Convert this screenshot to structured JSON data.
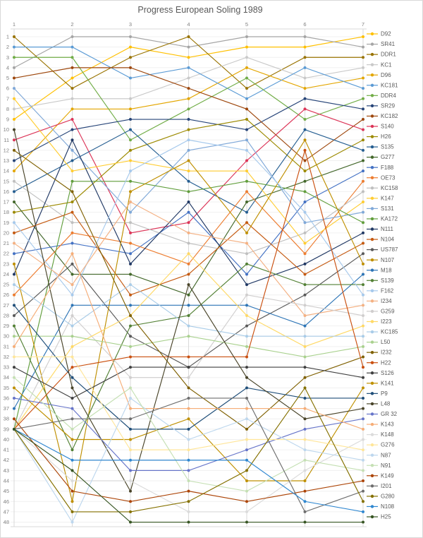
{
  "title": "Progress European Soling 1989",
  "chart_data": {
    "type": "line",
    "title": "Progress European Soling 1989",
    "xlabel": "",
    "ylabel": "",
    "x": [
      1,
      2,
      3,
      4,
      5,
      6,
      7
    ],
    "x_axis_position": "top",
    "y_axis": {
      "min": 1,
      "max": 48,
      "inverted": true,
      "meaning": "overall position after each race"
    },
    "grid": true,
    "legend_position": "right",
    "axis_color": "#808080",
    "grid_color_h": "#f0f0f0",
    "grid_color_v": "#d9d9d9",
    "series": [
      {
        "name": "D92",
        "color": "#FFC000",
        "positions": [
          9,
          5,
          2,
          3,
          2,
          2,
          1
        ]
      },
      {
        "name": "SR41",
        "color": "#A5A5A5",
        "positions": [
          4,
          1,
          1,
          2,
          1,
          1,
          2
        ]
      },
      {
        "name": "DDR1",
        "color": "#997300",
        "positions": [
          1,
          6,
          3,
          1,
          6,
          3,
          3
        ]
      },
      {
        "name": "KC1",
        "color": "#C9C9C9",
        "positions": [
          8,
          7,
          7,
          5,
          3,
          5,
          4
        ]
      },
      {
        "name": "D96",
        "color": "#E3A600",
        "positions": [
          14,
          8,
          8,
          7,
          4,
          6,
          5
        ]
      },
      {
        "name": "KC181",
        "color": "#5B9BD5",
        "positions": [
          2,
          2,
          5,
          4,
          7,
          4,
          6
        ]
      },
      {
        "name": "DDR4",
        "color": "#71AD47",
        "positions": [
          3,
          3,
          11,
          8,
          5,
          9,
          7
        ]
      },
      {
        "name": "SR29",
        "color": "#264478",
        "positions": [
          13,
          10,
          9,
          9,
          10,
          7,
          8
        ]
      },
      {
        "name": "KC182",
        "color": "#9E480E",
        "positions": [
          5,
          4,
          4,
          6,
          8,
          13,
          9
        ]
      },
      {
        "name": "S140",
        "color": "#DC3558",
        "positions": [
          11,
          9,
          20,
          19,
          13,
          8,
          10
        ]
      },
      {
        "name": "H26",
        "color": "#9C8A00",
        "positions": [
          18,
          17,
          12,
          10,
          9,
          14,
          11
        ]
      },
      {
        "name": "S135",
        "color": "#255E91",
        "positions": [
          16,
          13,
          10,
          15,
          18,
          10,
          12
        ]
      },
      {
        "name": "G277",
        "color": "#43682B",
        "positions": [
          17,
          24,
          24,
          26,
          17,
          15,
          13
        ]
      },
      {
        "name": "F188",
        "color": "#4472C4",
        "positions": [
          22,
          21,
          22,
          18,
          24,
          17,
          14
        ]
      },
      {
        "name": "OE73",
        "color": "#ED7D31",
        "positions": [
          26,
          20,
          21,
          23,
          16,
          22,
          15
        ]
      },
      {
        "name": "KC158",
        "color": "#BFBFBF",
        "positions": [
          15,
          19,
          19,
          21,
          22,
          20,
          16
        ]
      },
      {
        "name": "K147",
        "color": "#FFCD33",
        "positions": [
          7,
          14,
          13,
          14,
          14,
          21,
          17
        ]
      },
      {
        "name": "S131",
        "color": "#7FA8D8",
        "positions": [
          6,
          12,
          18,
          12,
          11,
          19,
          18
        ]
      },
      {
        "name": "KA172",
        "color": "#619E3C",
        "positions": [
          39,
          15,
          15,
          16,
          15,
          16,
          19
        ]
      },
      {
        "name": "N111",
        "color": "#203864",
        "positions": [
          24,
          11,
          23,
          17,
          25,
          23,
          20
        ]
      },
      {
        "name": "N104",
        "color": "#C55A11",
        "positions": [
          20,
          18,
          26,
          24,
          19,
          24,
          21
        ]
      },
      {
        "name": "US787",
        "color": "#595959",
        "positions": [
          28,
          23,
          30,
          33,
          29,
          26,
          22
        ]
      },
      {
        "name": "N107",
        "color": "#BF8F00",
        "positions": [
          23,
          46,
          16,
          13,
          20,
          11,
          23
        ]
      },
      {
        "name": "M18",
        "color": "#2E75B6",
        "positions": [
          37,
          27,
          27,
          27,
          27,
          29,
          24
        ]
      },
      {
        "name": "S139",
        "color": "#538135",
        "positions": [
          29,
          41,
          29,
          28,
          23,
          25,
          25
        ]
      },
      {
        "name": "F162",
        "color": "#A6C9EC",
        "positions": [
          19,
          26,
          14,
          11,
          12,
          18,
          26
        ]
      },
      {
        "name": "I234",
        "color": "#F4B183",
        "positions": [
          21,
          25,
          17,
          20,
          21,
          28,
          27
        ]
      },
      {
        "name": "G259",
        "color": "#D0CECE",
        "positions": [
          39,
          28,
          34,
          34,
          26,
          27,
          28
        ]
      },
      {
        "name": "I223",
        "color": "#FFD966",
        "positions": [
          39,
          31,
          28,
          22,
          28,
          31,
          29
        ]
      },
      {
        "name": "KC185",
        "color": "#A9CCE8",
        "positions": [
          25,
          29,
          25,
          29,
          30,
          30,
          30
        ]
      },
      {
        "name": "L50",
        "color": "#A9D18E",
        "positions": [
          30,
          30,
          31,
          30,
          31,
          32,
          31
        ]
      },
      {
        "name": "I232",
        "color": "#7F6000",
        "positions": [
          12,
          16,
          28,
          35,
          39,
          34,
          32
        ]
      },
      {
        "name": "H22",
        "color": "#CA5010",
        "positions": [
          39,
          33,
          32,
          32,
          32,
          12,
          33
        ]
      },
      {
        "name": "S126",
        "color": "#404040",
        "positions": [
          33,
          36,
          33,
          33,
          33,
          33,
          34
        ]
      },
      {
        "name": "K141",
        "color": "#BF9000",
        "positions": [
          35,
          40,
          40,
          38,
          44,
          44,
          35
        ]
      },
      {
        "name": "P9",
        "color": "#1F4E79",
        "positions": [
          27,
          34,
          39,
          39,
          35,
          36,
          36
        ]
      },
      {
        "name": "L48",
        "color": "#494429",
        "positions": [
          10,
          35,
          45,
          25,
          34,
          38,
          37
        ]
      },
      {
        "name": "GR 32",
        "color": "#6674C9",
        "positions": [
          36,
          37,
          43,
          43,
          41,
          39,
          38
        ]
      },
      {
        "name": "K143",
        "color": "#F6AD77",
        "positions": [
          31,
          22,
          37,
          37,
          37,
          37,
          39
        ]
      },
      {
        "name": "K148",
        "color": "#DBDBDB",
        "positions": [
          39,
          44,
          44,
          47,
          47,
          43,
          40
        ]
      },
      {
        "name": "G276",
        "color": "#FFE699",
        "positions": [
          32,
          32,
          41,
          41,
          40,
          40,
          41
        ]
      },
      {
        "name": "N87",
        "color": "#BDD7EE",
        "positions": [
          39,
          48,
          36,
          40,
          38,
          41,
          42
        ]
      },
      {
        "name": "N91",
        "color": "#C5E0B4",
        "positions": [
          34,
          39,
          35,
          44,
          45,
          42,
          43
        ]
      },
      {
        "name": "K149",
        "color": "#AC4508",
        "positions": [
          38,
          45,
          46,
          45,
          46,
          45,
          44
        ]
      },
      {
        "name": "I201",
        "color": "#6E6E6E",
        "positions": [
          39,
          38,
          38,
          36,
          36,
          47,
          45
        ]
      },
      {
        "name": "G280",
        "color": "#857100",
        "positions": [
          39,
          47,
          47,
          46,
          43,
          35,
          46
        ]
      },
      {
        "name": "N108",
        "color": "#2F87D0",
        "positions": [
          39,
          42,
          42,
          42,
          42,
          46,
          47
        ]
      },
      {
        "name": "H25",
        "color": "#375623",
        "positions": [
          39,
          43,
          48,
          48,
          48,
          48,
          48
        ]
      }
    ]
  }
}
